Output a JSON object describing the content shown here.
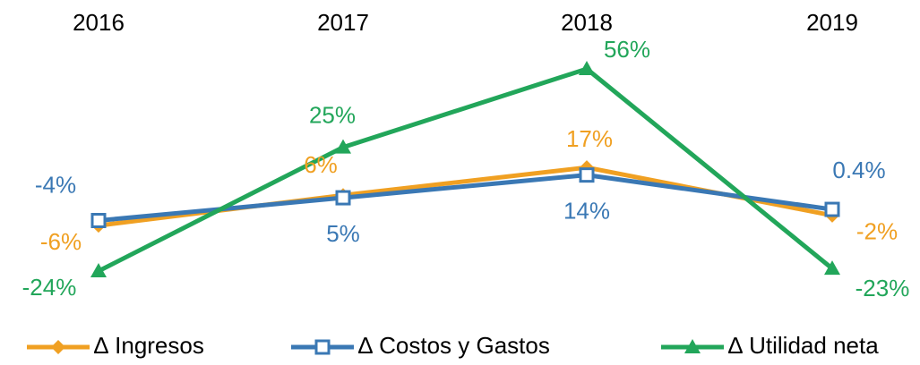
{
  "chart_data": {
    "type": "line",
    "categories": [
      "2016",
      "2017",
      "2018",
      "2019"
    ],
    "series": [
      {
        "name": "∆ Ingresos",
        "color": "#f0a022",
        "marker": "diamond",
        "values": [
          -6,
          6,
          17,
          -2
        ],
        "value_labels": [
          "-6%",
          "6%",
          "17%",
          "-2%"
        ]
      },
      {
        "name": "∆ Costos y Gastos",
        "color": "#3a78b4",
        "marker": "square",
        "values": [
          -4,
          5,
          14,
          0.4
        ],
        "value_labels": [
          "-4%",
          "5%",
          "14%",
          "0.4%"
        ]
      },
      {
        "name": "∆ Utilidad neta",
        "color": "#22a65a",
        "marker": "triangle",
        "values": [
          -24,
          25,
          56,
          -23
        ],
        "value_labels": [
          "-24%",
          "25%",
          "56%",
          "-23%"
        ]
      }
    ],
    "legend": "bottom"
  }
}
